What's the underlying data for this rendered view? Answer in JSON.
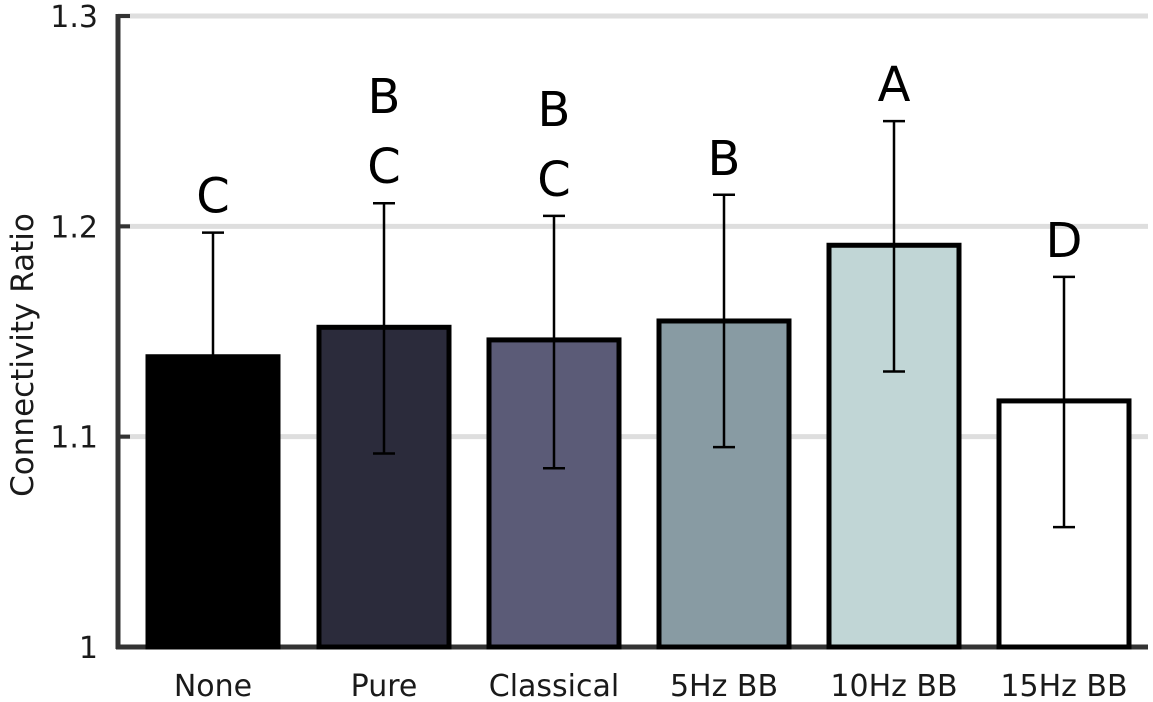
{
  "chart_data": {
    "type": "bar",
    "title": "",
    "xlabel": "",
    "ylabel": "Connectivity Ratio",
    "ylim": [
      1.0,
      1.3
    ],
    "yticks": [
      1.0,
      1.1,
      1.2,
      1.3
    ],
    "ytick_labels": [
      "1",
      "1.1",
      "1.2",
      "1.3"
    ],
    "grid": "horizontal",
    "categories": [
      "None",
      "Pure",
      "Classical",
      "5Hz BB",
      "10Hz BB",
      "15Hz BB"
    ],
    "values": [
      1.138,
      1.152,
      1.146,
      1.155,
      1.191,
      1.117
    ],
    "error_low": [
      1.138,
      1.092,
      1.085,
      1.095,
      1.131,
      1.057
    ],
    "error_high": [
      1.197,
      1.211,
      1.205,
      1.215,
      1.25,
      1.176
    ],
    "bar_colors": [
      "#000000",
      "#2b2b3b",
      "#5b5b77",
      "#889ba3",
      "#c1d6d6",
      "#ffffff"
    ],
    "annotations": [
      [
        "C"
      ],
      [
        "B",
        "C"
      ],
      [
        "B",
        "C"
      ],
      [
        "B"
      ],
      [
        "A"
      ],
      [
        "D"
      ]
    ]
  }
}
